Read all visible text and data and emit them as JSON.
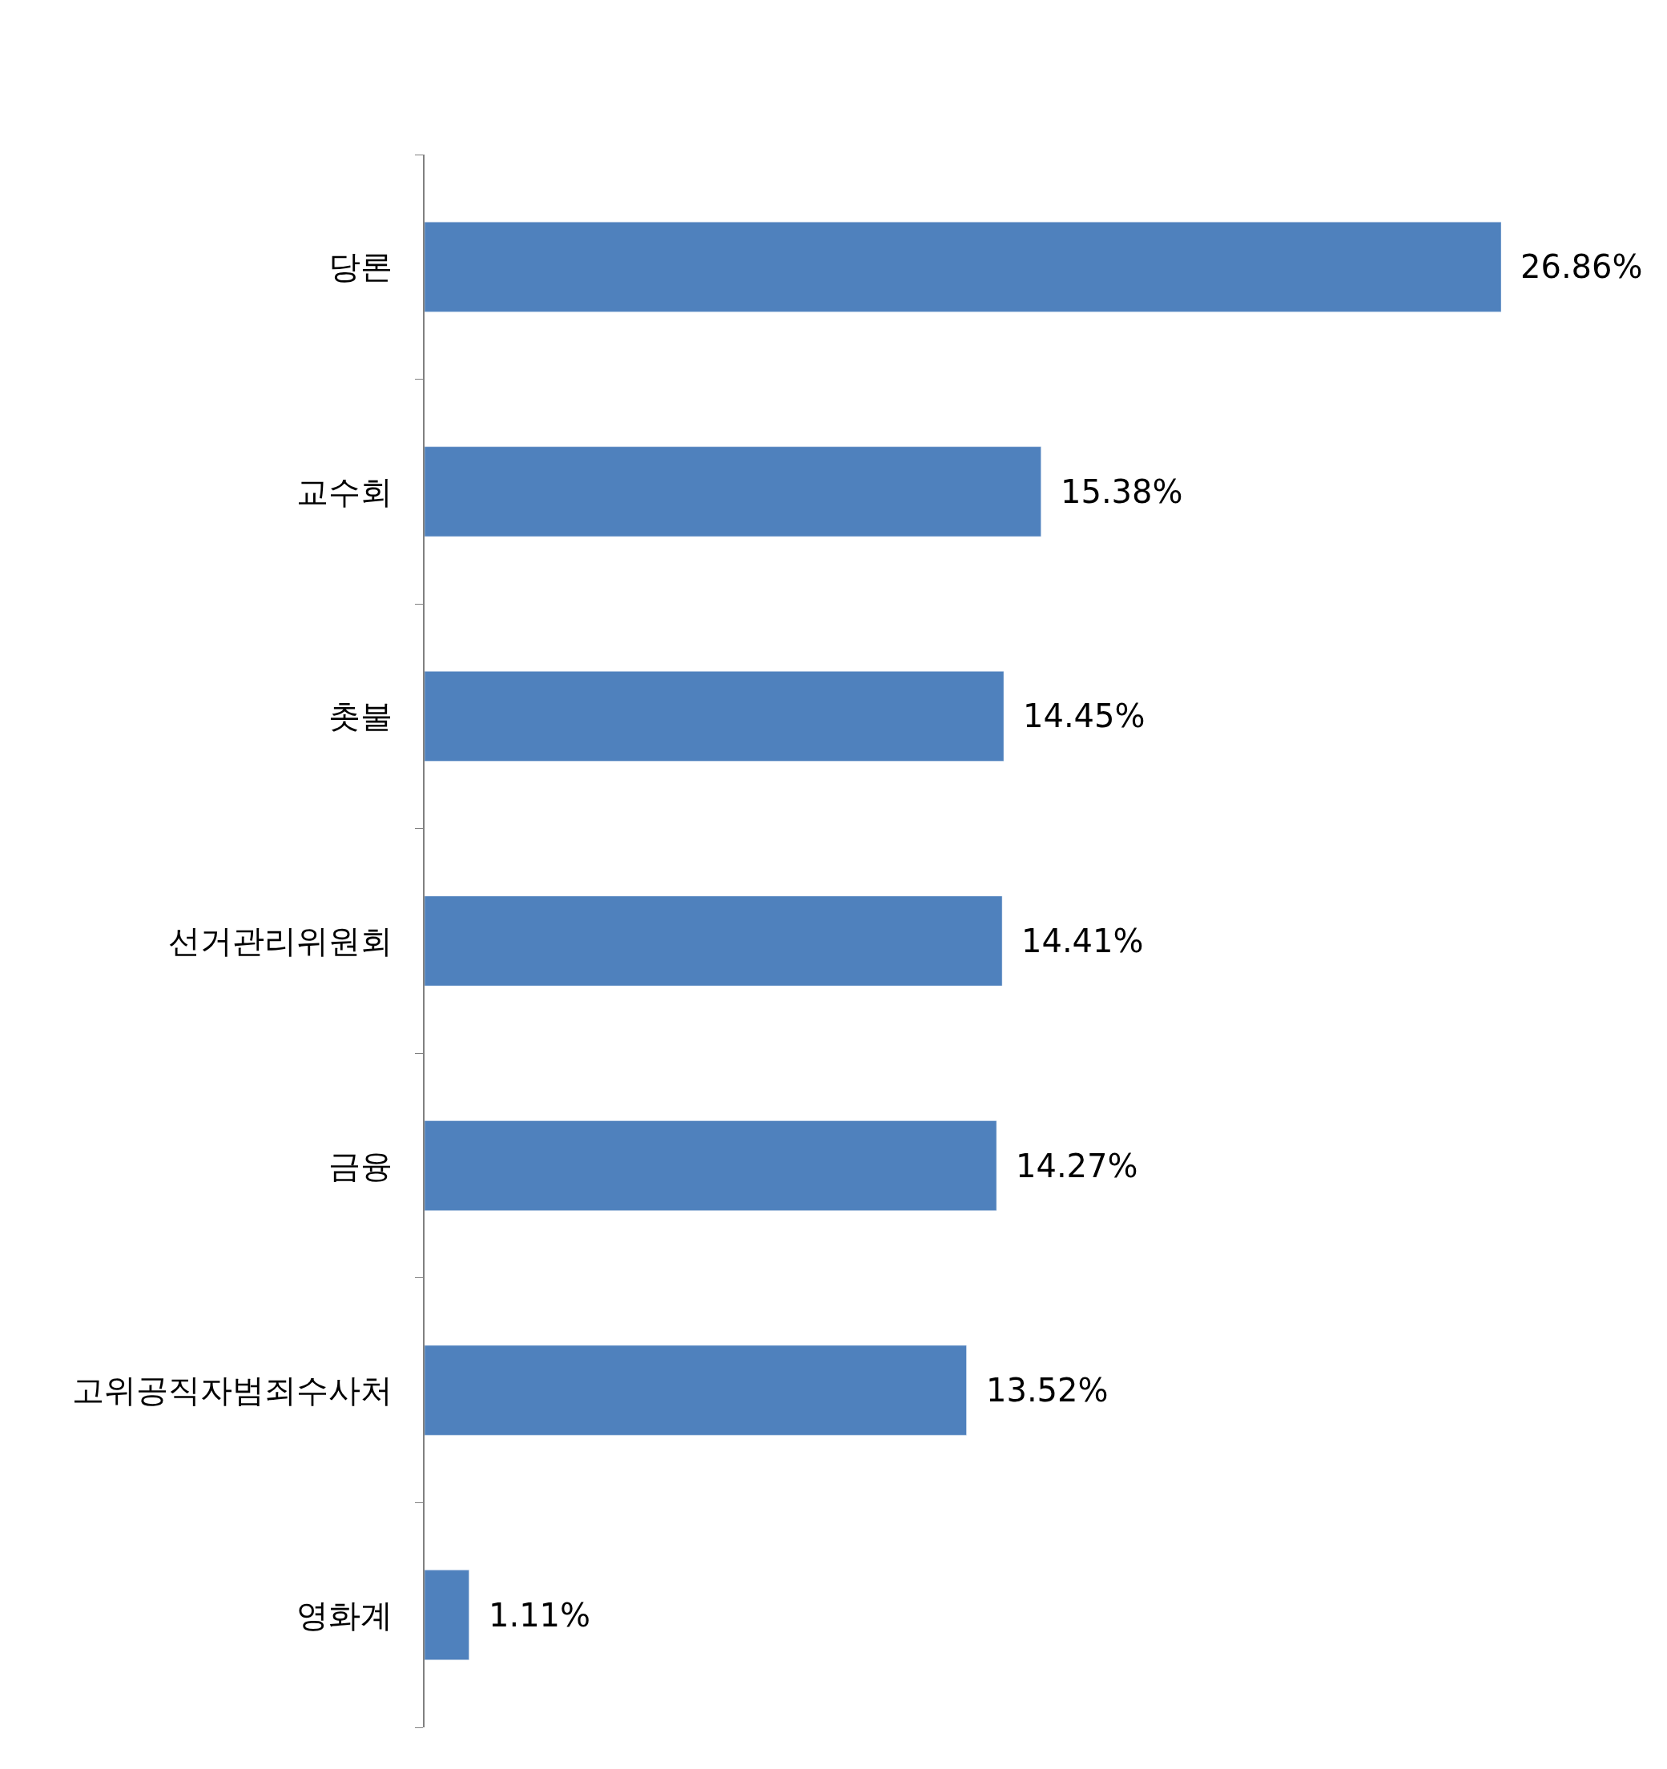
{
  "chart_data": {
    "type": "bar",
    "orientation": "horizontal",
    "categories": [
      "당론",
      "교수회",
      "촛불",
      "선거관리위원회",
      "금융",
      "고위공직자범죄수사처",
      "영화계"
    ],
    "values": [
      26.86,
      15.38,
      14.45,
      14.41,
      14.27,
      13.52,
      1.11
    ],
    "value_labels": [
      "26.86%",
      "15.38%",
      "14.45%",
      "14.41%",
      "14.27%",
      "13.52%",
      "1.11%"
    ],
    "color": "#4f81bd"
  }
}
